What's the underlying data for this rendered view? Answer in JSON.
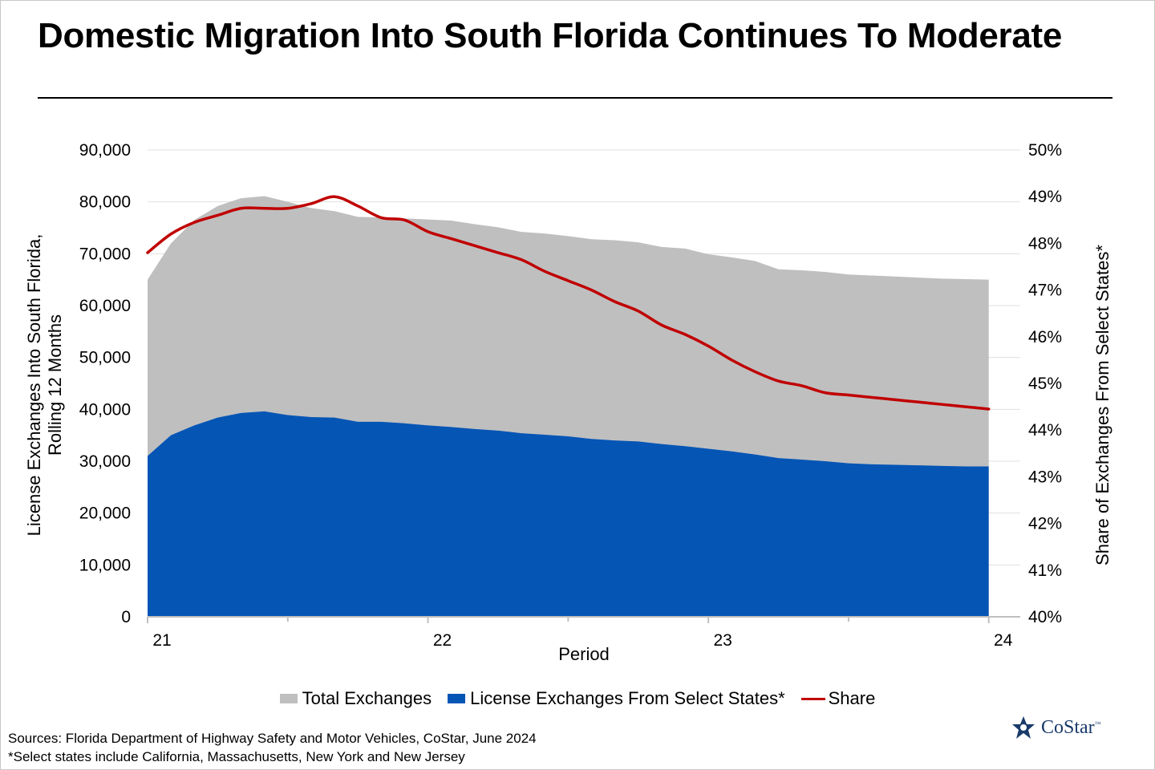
{
  "title": "Domestic Migration Into South Florida Continues To Moderate",
  "colors": {
    "total": "#bfbfbf",
    "select": "#0555b5",
    "share": "#c00000",
    "logo": "#1a3a6b"
  },
  "chart_data": {
    "type": "area",
    "title": "Domestic Migration Into South Florida Continues To Moderate",
    "xlabel": "Period",
    "ylabel_left": "License Exchanges Into South Florida, Rolling 12 Months",
    "ylabel_left_lines": [
      "License Exchanges Into South Florida,",
      "Rolling 12 Months"
    ],
    "ylabel_right": "Share of Exchanges From Select States*",
    "x_tick_labels": [
      "21",
      "22",
      "23",
      "24"
    ],
    "x_tick_positions": [
      0,
      12,
      24,
      36
    ],
    "y_left_ticks": [
      "0",
      "10,000",
      "20,000",
      "30,000",
      "40,000",
      "50,000",
      "60,000",
      "70,000",
      "80,000",
      "90,000"
    ],
    "y_left_range": [
      0,
      90000
    ],
    "y_right_ticks": [
      "40%",
      "41%",
      "42%",
      "43%",
      "44%",
      "45%",
      "46%",
      "47%",
      "48%",
      "49%",
      "50%"
    ],
    "y_right_range": [
      40,
      50
    ],
    "x": [
      0,
      1,
      2,
      3,
      4,
      5,
      6,
      7,
      8,
      9,
      10,
      11,
      12,
      13,
      14,
      15,
      16,
      17,
      18,
      19,
      20,
      21,
      22,
      23,
      24,
      25,
      26,
      27,
      28,
      29,
      30,
      31,
      32,
      33,
      34,
      35,
      36
    ],
    "series": [
      {
        "name": "Total Exchanges",
        "type": "area",
        "axis": "left",
        "values": [
          65000,
          72000,
          76500,
          79200,
          80700,
          81100,
          80000,
          78800,
          78200,
          77100,
          77000,
          76800,
          76600,
          76400,
          75700,
          75100,
          74200,
          73900,
          73400,
          72800,
          72600,
          72200,
          71300,
          71000,
          69900,
          69300,
          68600,
          67000,
          66800,
          66500,
          66000,
          65800,
          65600,
          65400,
          65200,
          65100,
          65000
        ]
      },
      {
        "name": "License Exchanges From Select States*",
        "type": "area",
        "axis": "left",
        "values": [
          31000,
          35000,
          36900,
          38400,
          39300,
          39600,
          38900,
          38500,
          38400,
          37600,
          37600,
          37300,
          36900,
          36600,
          36200,
          35900,
          35400,
          35100,
          34800,
          34300,
          34000,
          33800,
          33300,
          32900,
          32400,
          31900,
          31300,
          30600,
          30300,
          30000,
          29600,
          29400,
          29300,
          29200,
          29100,
          29000,
          29000
        ]
      },
      {
        "name": "Share",
        "type": "line",
        "axis": "right",
        "values": [
          47.8,
          48.2,
          48.45,
          48.6,
          48.75,
          48.75,
          48.75,
          48.85,
          49.0,
          48.8,
          48.55,
          48.5,
          48.25,
          48.1,
          47.95,
          47.8,
          47.65,
          47.4,
          47.2,
          47.0,
          46.75,
          46.55,
          46.25,
          46.05,
          45.8,
          45.5,
          45.25,
          45.05,
          44.95,
          44.8,
          44.75,
          44.7,
          44.65,
          44.6,
          44.55,
          44.5,
          44.45
        ]
      }
    ],
    "data_x_end": 36.8,
    "legend_position": "bottom-center"
  },
  "legend": {
    "total_label": "Total Exchanges",
    "select_label": "License Exchanges From Select States*",
    "share_label": "Share"
  },
  "footnotes": {
    "sources": "Sources: Florida Department of Highway Safety and Motor Vehicles, CoStar, June 2024",
    "select_states": "*Select states include California, Massachusetts, New York and New Jersey"
  },
  "logo": {
    "text": "CoStar",
    "tm": "™"
  }
}
